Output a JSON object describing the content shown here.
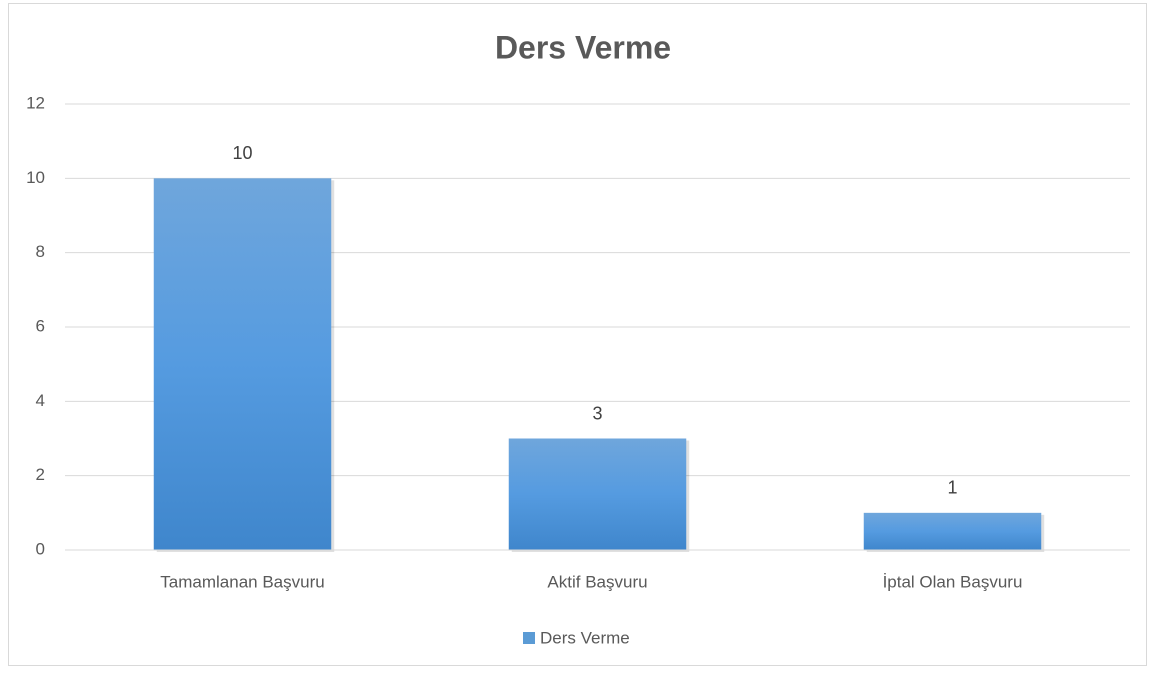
{
  "chart_data": {
    "type": "bar",
    "title": "Ders Verme",
    "categories": [
      "Tamamlanan Başvuru",
      "Aktif Başvuru",
      "İptal Olan Başvuru"
    ],
    "series": [
      {
        "name": "Ders Verme",
        "color": "#5b9bd5",
        "values": [
          10,
          3,
          1
        ]
      }
    ],
    "ylim": [
      0,
      12
    ],
    "yticks": [
      0,
      2,
      4,
      6,
      8,
      10,
      12
    ],
    "grid": true,
    "legend": "bottom"
  }
}
